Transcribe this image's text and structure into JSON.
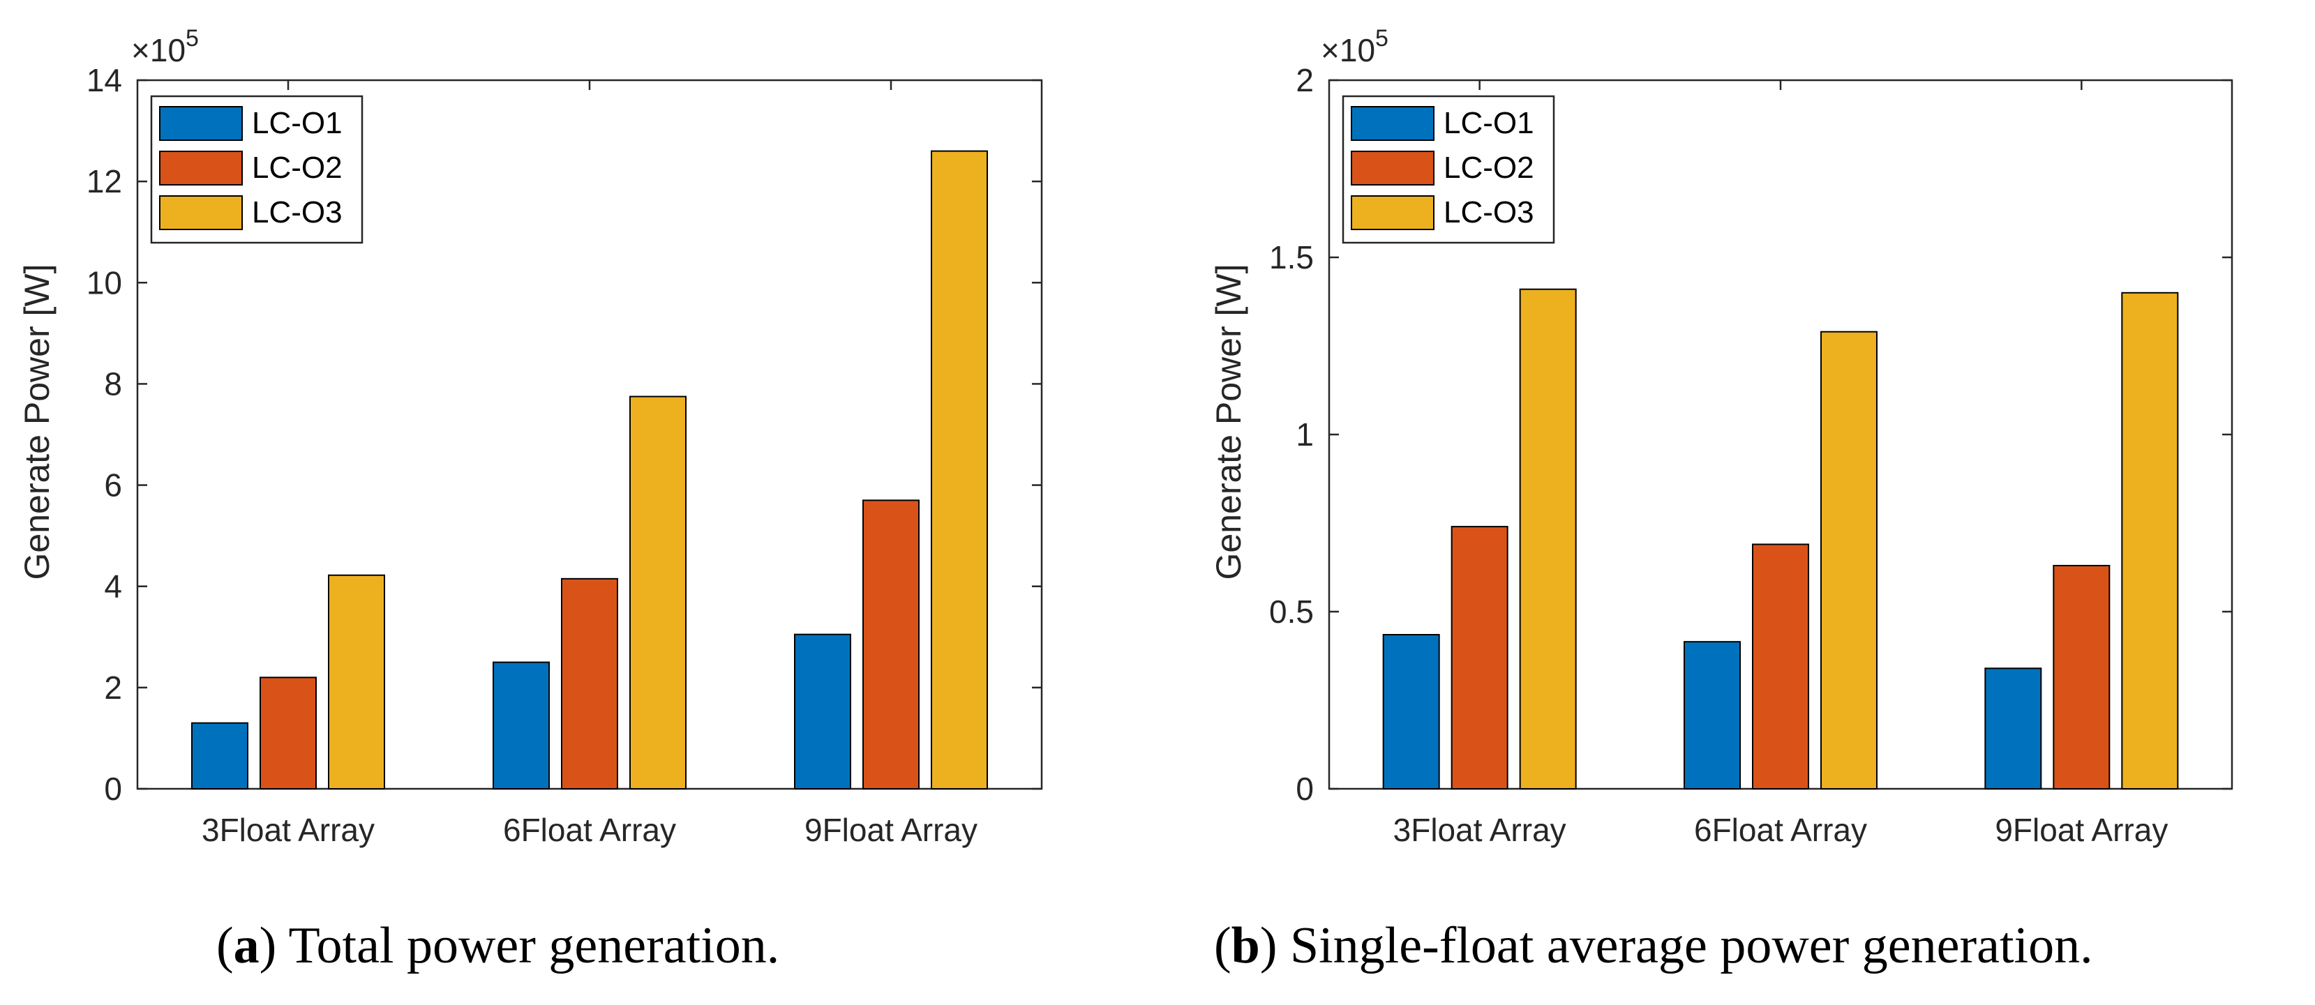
{
  "chart_data": [
    {
      "type": "bar",
      "panel_label": "a",
      "caption": "Total power generation.",
      "categories": [
        "3Float Array",
        "6Float Array",
        "9Float Array"
      ],
      "series": [
        {
          "name": "LC-O1",
          "values": [
            1.3,
            2.5,
            3.05
          ],
          "color": "#0072BD"
        },
        {
          "name": "LC-O2",
          "values": [
            2.2,
            4.15,
            5.7
          ],
          "color": "#D95319"
        },
        {
          "name": "LC-O3",
          "values": [
            4.22,
            7.75,
            12.6
          ],
          "color": "#EDB120"
        }
      ],
      "ylabel": "Generate Power [W]",
      "xlabel": "",
      "ylim": [
        0,
        14
      ],
      "yticks": [
        0,
        2,
        4,
        6,
        8,
        10,
        12,
        14
      ],
      "ytick_labels": [
        "0",
        "2",
        "4",
        "6",
        "8",
        "10",
        "12",
        "14"
      ],
      "exponent_base": "×10",
      "exponent_power": "5",
      "legend_position": "top-left",
      "grid": false
    },
    {
      "type": "bar",
      "panel_label": "b",
      "caption": "Single-float average power generation.",
      "categories": [
        "3Float Array",
        "6Float Array",
        "9Float Array"
      ],
      "series": [
        {
          "name": "LC-O1",
          "values": [
            0.435,
            0.415,
            0.34
          ],
          "color": "#0072BD"
        },
        {
          "name": "LC-O2",
          "values": [
            0.74,
            0.69,
            0.63
          ],
          "color": "#D95319"
        },
        {
          "name": "LC-O3",
          "values": [
            1.41,
            1.29,
            1.4
          ],
          "color": "#EDB120"
        }
      ],
      "ylabel": "Generate Power [W]",
      "xlabel": "",
      "ylim": [
        0,
        2
      ],
      "yticks": [
        0,
        0.5,
        1,
        1.5,
        2
      ],
      "ytick_labels": [
        "0",
        "0.5",
        "1",
        "1.5",
        "2"
      ],
      "exponent_base": "×10",
      "exponent_power": "5",
      "legend_position": "top-left",
      "grid": false
    }
  ]
}
